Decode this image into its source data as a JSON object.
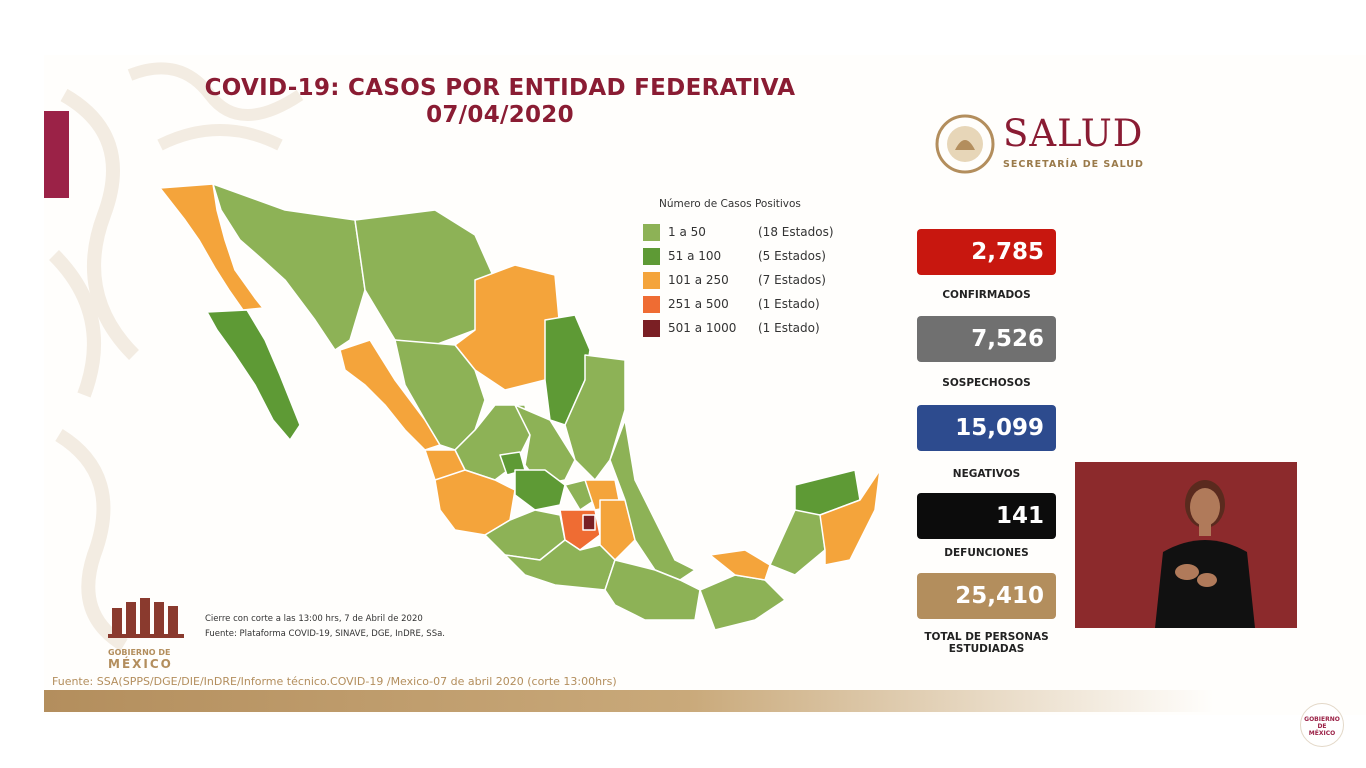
{
  "title": {
    "line1": "COVID-19: CASOS POR ENTIDAD FEDERATIVA",
    "line2": "07/04/2020"
  },
  "logo": {
    "name": "SALUD",
    "subtitle": "SECRETARÍA DE SALUD"
  },
  "legend": {
    "title": "Número de Casos Positivos",
    "items": [
      {
        "range": "1 a    50",
        "count": "(18 Estados)",
        "color": "#8db256"
      },
      {
        "range": "51 a  100",
        "count": "(5 Estados)",
        "color": "#5e9a35"
      },
      {
        "range": "101 a  250",
        "count": "(7 Estados)",
        "color": "#f4a43b"
      },
      {
        "range": "251 a  500",
        "count": "(1 Estado)",
        "color": "#ef6c33"
      },
      {
        "range": "501 a 1000",
        "count": "(1 Estado)",
        "color": "#7a1f24"
      }
    ]
  },
  "stats": [
    {
      "value": "2,785",
      "label": "CONFIRMADOS",
      "color": "#c8170f"
    },
    {
      "value": "7,526",
      "label": "SOSPECHOSOS",
      "color": "#707070"
    },
    {
      "value": "15,099",
      "label": "NEGATIVOS",
      "color": "#2d4b8e"
    },
    {
      "value": "141",
      "label": "DEFUNCIONES",
      "color": "#0c0c0c"
    },
    {
      "value": "25,410",
      "label_line1": "TOTAL DE PERSONAS",
      "label_line2": "ESTUDIADAS",
      "color": "#b38e5d"
    }
  ],
  "footnote": {
    "line1": "Cierre con corte a las 13:00 hrs, 7 de Abril de 2020",
    "line2": "Fuente: Plataforma COVID-19, SINAVE, DGE, InDRE, SSa."
  },
  "source": "Fuente: SSA(SPPS/DGE/DIE/InDRE/Informe técnico.COVID-19 /Mexico-07 de abril 2020 (corte 13:00hrs)",
  "gob_logo": {
    "line1": "GOBIERNO DE",
    "line2": "MÉXICO"
  },
  "corner_logo": {
    "line1": "GOBIERNO DE",
    "line2": "MÉXICO"
  },
  "colors": {
    "guinda": "#9b2247",
    "dorado": "#b38e5d"
  }
}
